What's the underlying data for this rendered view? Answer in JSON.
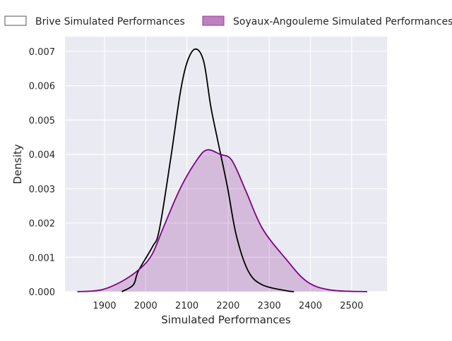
{
  "chart_data": {
    "type": "line",
    "title": "",
    "xlabel": "Simulated Performances",
    "ylabel": "Density",
    "xlim": [
      1804,
      2586
    ],
    "ylim": [
      0,
      0.00743
    ],
    "x_ticks": [
      1900,
      2000,
      2100,
      2200,
      2300,
      2400,
      2500
    ],
    "x_tick_labels": [
      "1900",
      "2000",
      "2100",
      "2200",
      "2300",
      "2400",
      "2500"
    ],
    "y_ticks": [
      0,
      0.001,
      0.002,
      0.003,
      0.004,
      0.005,
      0.006,
      0.007
    ],
    "y_tick_labels": [
      "0.000",
      "0.001",
      "0.002",
      "0.003",
      "0.004",
      "0.005",
      "0.006",
      "0.007"
    ],
    "grid": true,
    "background": "#eaeaf2",
    "legend_placement": "top (above plot)",
    "series": [
      {
        "name": "Brive Simulated Performances",
        "color": "#000000",
        "filled": false,
        "x": [
          1942,
          1970,
          1982,
          2016,
          2033,
          2061,
          2084,
          2101,
          2121,
          2141,
          2158,
          2175,
          2198,
          2220,
          2249,
          2283,
          2340,
          2360
        ],
        "y": [
          0,
          0.0002,
          0.0006,
          0.0013,
          0.0018,
          0.0039,
          0.0058,
          0.0067,
          0.00707,
          0.0067,
          0.0054,
          0.0044,
          0.00308,
          0.00164,
          0.0006,
          0.0002,
          3e-05,
          0
        ]
      },
      {
        "name": "Soyaux-Angouleme Simulated Performances",
        "color": "#800080",
        "filled": true,
        "x": [
          1834,
          1891,
          1942,
          1987,
          2016,
          2044,
          2084,
          2124,
          2149,
          2181,
          2209,
          2243,
          2283,
          2340,
          2391,
          2448,
          2538
        ],
        "y": [
          0,
          5e-05,
          0.0003,
          0.00068,
          0.0011,
          0.0019,
          0.00301,
          0.00383,
          0.00413,
          0.004,
          0.00383,
          0.00294,
          0.00185,
          0.00096,
          0.0003,
          5e-05,
          0
        ]
      }
    ]
  }
}
